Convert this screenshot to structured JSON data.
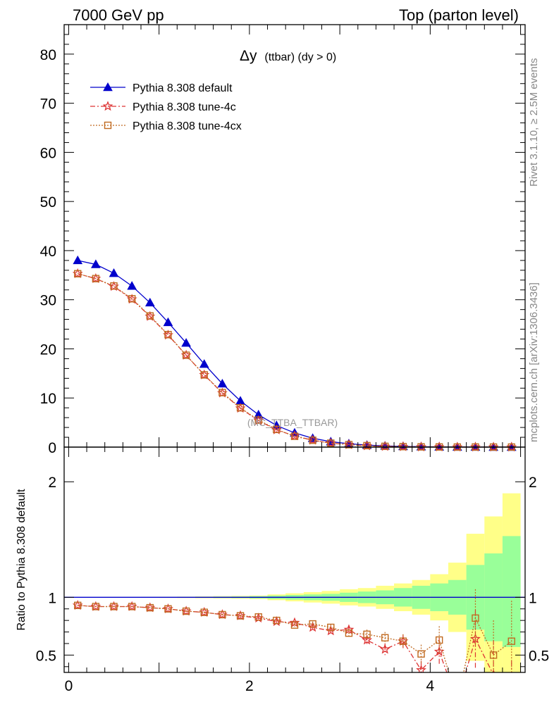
{
  "header": {
    "left": "7000 GeV pp",
    "right": "Top (parton level)"
  },
  "side_labels": {
    "rivet": "Rivet 3.1.10, ≥ 2.5M events",
    "mcplots": "mcplots.cern.ch [arXiv:1306.3436]"
  },
  "plot": {
    "title_main": "Δy",
    "title_sub": "(ttbar) (dy > 0)",
    "watermark": "(MC_TTBA_TTBAR)"
  },
  "ratio_ylabel": "Ratio to Pythia 8.308 default",
  "legend": [
    {
      "name": "Pythia 8.308 default"
    },
    {
      "name": "Pythia 8.308 tune-4c"
    },
    {
      "name": "Pythia 8.308 tune-4cx"
    }
  ],
  "colors": {
    "default": "#0000cc",
    "tune4c": "#dd3333",
    "tune4cx": "#c06a20",
    "band_inner": "#99ff99",
    "band_outer": "#ffff88"
  },
  "chart_data": [
    {
      "type": "line",
      "panel": "main",
      "xlim": [
        -0.05,
        5.05
      ],
      "ylim": [
        0,
        86
      ],
      "yticks": [
        "0",
        "10",
        "20",
        "30",
        "40",
        "50",
        "60",
        "70",
        "80"
      ],
      "x": [
        0.1,
        0.3,
        0.5,
        0.7,
        0.9,
        1.1,
        1.3,
        1.5,
        1.7,
        1.9,
        2.1,
        2.3,
        2.5,
        2.7,
        2.9,
        3.1,
        3.3,
        3.5,
        3.7,
        3.9,
        4.1,
        4.3,
        4.5,
        4.7,
        4.9
      ],
      "series": [
        {
          "name": "Pythia 8.308 default",
          "marker": "triangle",
          "values": [
            38.0,
            37.2,
            35.4,
            32.8,
            29.4,
            25.4,
            21.2,
            16.9,
            12.9,
            9.4,
            6.6,
            4.4,
            2.9,
            1.8,
            1.1,
            0.7,
            0.4,
            0.25,
            0.15,
            0.09,
            0.05,
            0.03,
            0.02,
            0.01,
            0.01
          ]
        },
        {
          "name": "Pythia 8.308 tune-4c",
          "marker": "star",
          "values": [
            35.3,
            34.3,
            32.7,
            30.1,
            26.6,
            22.8,
            18.7,
            14.7,
            11.0,
            7.9,
            5.4,
            3.5,
            2.3,
            1.4,
            0.8,
            0.5,
            0.25,
            0.13,
            0.08,
            0.03,
            0.03,
            0.0,
            0.01,
            0.0,
            0.0
          ]
        },
        {
          "name": "Pythia 8.308 tune-4cx",
          "marker": "square",
          "values": [
            35.3,
            34.3,
            32.8,
            30.2,
            26.7,
            22.9,
            18.7,
            14.7,
            11.1,
            8.0,
            5.5,
            3.6,
            2.2,
            1.4,
            0.8,
            0.5,
            0.3,
            0.16,
            0.1,
            0.05,
            0.03,
            0.01,
            0.02,
            0.01,
            0.01
          ]
        }
      ]
    },
    {
      "type": "line",
      "panel": "ratio",
      "xlim": [
        -0.05,
        5.05
      ],
      "ylim": [
        0.35,
        2.3
      ],
      "xticks": [
        "0",
        "2",
        "4"
      ],
      "yticks": [
        "0.5",
        "1",
        "2"
      ],
      "x": [
        0.1,
        0.3,
        0.5,
        0.7,
        0.9,
        1.1,
        1.3,
        1.5,
        1.7,
        1.9,
        2.1,
        2.3,
        2.5,
        2.7,
        2.9,
        3.1,
        3.3,
        3.5,
        3.7,
        3.9,
        4.1,
        4.3,
        4.5,
        4.7,
        4.9
      ],
      "reference": 1.0,
      "band_inner": {
        "lo": [
          0.999,
          0.999,
          0.998,
          0.998,
          0.997,
          0.997,
          0.996,
          0.995,
          0.994,
          0.993,
          0.99,
          0.985,
          0.98,
          0.975,
          0.97,
          0.96,
          0.95,
          0.94,
          0.92,
          0.9,
          0.88,
          0.85,
          0.72,
          0.62,
          0.57
        ],
        "hi": [
          1.001,
          1.001,
          1.002,
          1.002,
          1.003,
          1.003,
          1.004,
          1.005,
          1.006,
          1.007,
          1.01,
          1.015,
          1.02,
          1.025,
          1.03,
          1.04,
          1.05,
          1.06,
          1.08,
          1.1,
          1.12,
          1.15,
          1.28,
          1.38,
          1.53
        ]
      },
      "band_outer": {
        "lo": [
          0.998,
          0.998,
          0.997,
          0.997,
          0.996,
          0.995,
          0.994,
          0.992,
          0.99,
          0.988,
          0.985,
          0.975,
          0.965,
          0.955,
          0.945,
          0.93,
          0.92,
          0.9,
          0.88,
          0.85,
          0.8,
          0.7,
          0.45,
          0.3,
          0.2
        ],
        "hi": [
          1.002,
          1.002,
          1.003,
          1.003,
          1.004,
          1.005,
          1.006,
          1.008,
          1.01,
          1.012,
          1.015,
          1.025,
          1.035,
          1.045,
          1.055,
          1.07,
          1.08,
          1.1,
          1.12,
          1.15,
          1.2,
          1.3,
          1.55,
          1.7,
          1.9
        ]
      },
      "series": [
        {
          "name": "Pythia 8.308 tune-4c",
          "marker": "star",
          "values": [
            0.93,
            0.92,
            0.92,
            0.92,
            0.91,
            0.9,
            0.88,
            0.87,
            0.85,
            0.84,
            0.82,
            0.79,
            0.78,
            0.74,
            0.71,
            0.72,
            0.63,
            0.55,
            0.62,
            0.37,
            0.53,
            0.1,
            0.64,
            0.33,
            0.1
          ],
          "err": [
            0.003,
            0.003,
            0.003,
            0.003,
            0.003,
            0.004,
            0.005,
            0.006,
            0.007,
            0.009,
            0.01,
            0.012,
            0.015,
            0.02,
            0.025,
            0.03,
            0.04,
            0.05,
            0.06,
            0.08,
            0.12,
            0.2,
            0.25,
            0.3,
            0.35
          ]
        },
        {
          "name": "Pythia 8.308 tune-4cx",
          "marker": "square",
          "values": [
            0.93,
            0.92,
            0.92,
            0.92,
            0.91,
            0.9,
            0.88,
            0.87,
            0.85,
            0.84,
            0.83,
            0.8,
            0.76,
            0.77,
            0.74,
            0.69,
            0.68,
            0.65,
            0.62,
            0.51,
            0.63,
            0.1,
            0.82,
            0.5,
            0.62
          ],
          "err": [
            0.003,
            0.003,
            0.003,
            0.003,
            0.003,
            0.004,
            0.005,
            0.006,
            0.007,
            0.009,
            0.01,
            0.012,
            0.015,
            0.02,
            0.025,
            0.03,
            0.04,
            0.05,
            0.06,
            0.08,
            0.12,
            0.2,
            0.25,
            0.3,
            0.35
          ]
        }
      ]
    }
  ]
}
